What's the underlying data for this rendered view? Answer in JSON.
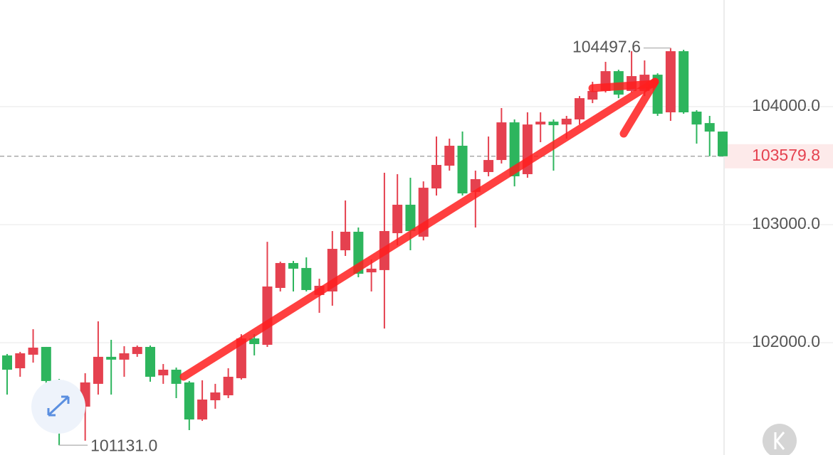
{
  "chart_data": {
    "type": "candlestick",
    "up_color": "#e5414f",
    "down_color": "#2db55d",
    "ylim": [
      101048,
      104904
    ],
    "yticks": [
      {
        "value": 102000,
        "label": "102000.0"
      },
      {
        "value": 103000,
        "label": "103000.0"
      },
      {
        "value": 104000,
        "label": "104000.0"
      }
    ],
    "grid": true,
    "open": [
      101892,
      101783,
      101898,
      101964,
      101681,
      101392,
      101458,
      101651,
      101880,
      101856,
      101904,
      101964,
      101723,
      101771,
      101663,
      101349,
      101512,
      101554,
      101699,
      102036,
      101982,
      102464,
      102675,
      102633,
      102404,
      102434,
      102783,
      102940,
      102596,
      102615,
      102928,
      103169,
      102898,
      103307,
      103500,
      103669,
      103277,
      103446,
      103548,
      103867,
      103428,
      103849,
      103873,
      103849,
      103892,
      104060,
      104133,
      104301,
      104133,
      104133,
      104271,
      103952,
      104470,
      103958,
      103861,
      103789
    ],
    "high": [
      101904,
      101922,
      102114,
      101964,
      101693,
      101620,
      101741,
      102181,
      102024,
      101970,
      101976,
      101976,
      101819,
      101789,
      101675,
      101681,
      101651,
      101783,
      102072,
      102072,
      102855,
      102687,
      102693,
      102723,
      102542,
      102946,
      103205,
      102976,
      102705,
      103440,
      103428,
      103398,
      103367,
      103747,
      103729,
      103789,
      103458,
      103747,
      103988,
      103892,
      103952,
      103952,
      103892,
      103922,
      104090,
      104211,
      104380,
      104313,
      104470,
      104392,
      104283,
      104497.6,
      104482,
      103970,
      103922,
      103789
    ],
    "low": [
      101560,
      101711,
      101831,
      101602,
      101131,
      101289,
      101169,
      101560,
      101560,
      101711,
      101880,
      101669,
      101651,
      101530,
      101259,
      101337,
      101440,
      101530,
      101687,
      101892,
      101964,
      102434,
      102434,
      102434,
      102253,
      102313,
      102735,
      102554,
      102434,
      102120,
      102825,
      102783,
      102867,
      103247,
      103458,
      103247,
      102976,
      103410,
      103518,
      103325,
      103398,
      103699,
      103458,
      103729,
      103849,
      104030,
      104120,
      104072,
      104120,
      104090,
      103922,
      103880,
      103940,
      103687,
      103580,
      103579.8
    ],
    "close": [
      101771,
      101910,
      101958,
      101675,
      101379,
      101470,
      101663,
      101880,
      101856,
      101910,
      101964,
      101711,
      101771,
      101651,
      101349,
      101518,
      101578,
      101711,
      102036,
      101988,
      102476,
      102675,
      102627,
      102446,
      102482,
      102795,
      102940,
      102584,
      102627,
      102946,
      103169,
      102946,
      103313,
      103506,
      103669,
      103265,
      103386,
      103548,
      103867,
      103410,
      103849,
      103873,
      103843,
      103898,
      104072,
      104133,
      104301,
      104102,
      104259,
      104271,
      103940,
      104470,
      103952,
      103849,
      103789,
      103579.8
    ],
    "max_annotation": {
      "value": 104497.6,
      "label": "104497.6"
    },
    "min_annotation": {
      "value": 101131,
      "label": "101131.0"
    },
    "last_price": {
      "value": 103579.8,
      "label": "103579.8"
    }
  }
}
